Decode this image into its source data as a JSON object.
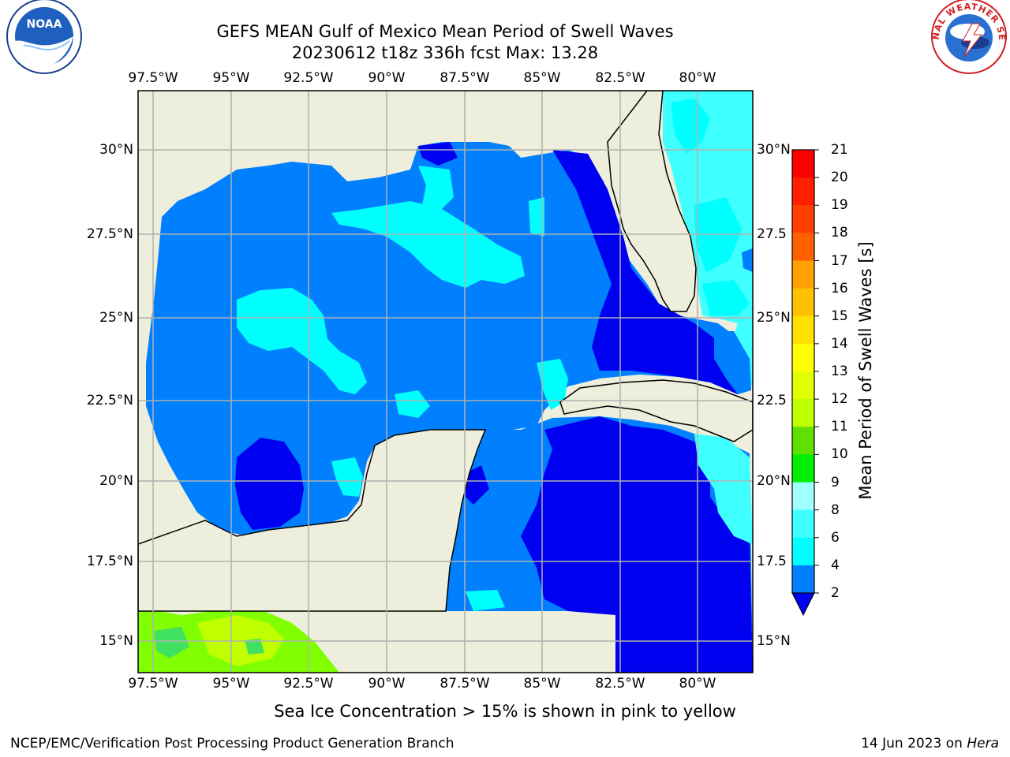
{
  "title": {
    "line1": "GEFS MEAN Gulf of Mexico Mean Period of Swell Waves",
    "line2": "20230612 t18z 336h fcst   Max: 13.28"
  },
  "map": {
    "lon_labels": [
      "97.5°W",
      "95°W",
      "92.5°W",
      "90°W",
      "87.5°W",
      "85°W",
      "82.5°W",
      "80°W"
    ],
    "lat_labels": [
      "30°N",
      "27.5°N",
      "25°N",
      "22.5°N",
      "20°N",
      "17.5°N",
      "15°N"
    ],
    "lat_labels_right": [
      "30°N",
      "27.5",
      "25°N",
      "22.5",
      "20°N",
      "17.5",
      "15°N"
    ],
    "colors": {
      "land": "#eeeedc",
      "ocean_2_4": "#0080ff",
      "ocean_below_2": "#0000f0",
      "ocean_4_6": "#00ffff",
      "ocean_6_8": "#40ffff",
      "ice_green": "#80ff00",
      "ice_lime": "#c0ff00"
    }
  },
  "colorbar": {
    "label": "Mean Period of Swell Waves [s]",
    "ticks": [
      "21",
      "20",
      "19",
      "18",
      "17",
      "16",
      "15",
      "14",
      "13",
      "12",
      "11",
      "10",
      "9",
      "8",
      "6",
      "4",
      "2"
    ],
    "colors": [
      "#ff0000",
      "#ff2000",
      "#ff4000",
      "#ff6000",
      "#ff8000",
      "#ffa000",
      "#ffc000",
      "#ffe000",
      "#ffff00",
      "#e0ff00",
      "#c0ff00",
      "#60e000",
      "#00ee00",
      "#40ff80",
      "#a0ffff",
      "#40ffff",
      "#00ffff",
      "#0080ff"
    ],
    "extend_color": "#0000f0"
  },
  "note": "Sea Ice Concentration > 15% is shown in pink to yellow",
  "footer": {
    "left": "NCEP/EMC/Verification Post Processing Product Generation Branch",
    "right_date": "14 Jun 2023 on ",
    "right_host": "Hera"
  },
  "logos": {
    "left_text": "NOAA",
    "right_text": "NATIONAL WEATHER SERVICE"
  }
}
